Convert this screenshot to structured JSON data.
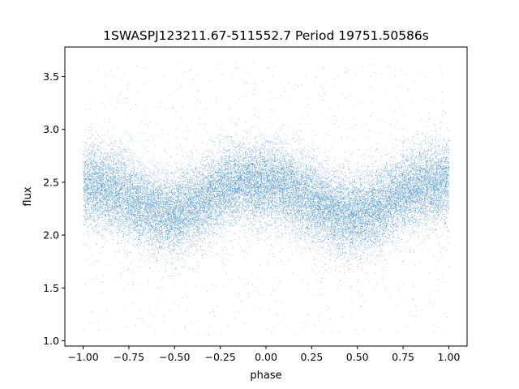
{
  "chart_data": {
    "type": "scatter",
    "title": "1SWASPJ123211.67-511552.7 Period 19751.50586s",
    "xlabel": "phase",
    "ylabel": "flux",
    "xlim": [
      -1.1,
      1.1
    ],
    "ylim": [
      0.95,
      3.78
    ],
    "x_ticks": [
      -1.0,
      -0.75,
      -0.5,
      -0.25,
      0.0,
      0.25,
      0.5,
      0.75,
      1.0
    ],
    "x_tick_labels": [
      "−1.00",
      "−0.75",
      "−0.50",
      "−0.25",
      "0.00",
      "0.25",
      "0.50",
      "0.75",
      "1.00"
    ],
    "y_ticks": [
      1.0,
      1.5,
      2.0,
      2.5,
      3.0,
      3.5
    ],
    "y_tick_labels": [
      "1.0",
      "1.5",
      "2.0",
      "2.5",
      "3.0",
      "3.5"
    ],
    "grid": false,
    "marker_color": "#1f77b4",
    "series": [
      {
        "phase_range": [
          -1.0,
          1.0
        ],
        "profile_phase": [
          -1.0,
          -0.9,
          -0.8,
          -0.7,
          -0.6,
          -0.5,
          -0.4,
          -0.3,
          -0.2,
          -0.1,
          0.0,
          0.1,
          0.2,
          0.3,
          0.4,
          0.5,
          0.6,
          0.7,
          0.8,
          0.9,
          1.0
        ],
        "profile_flux": [
          2.48,
          2.46,
          2.4,
          2.3,
          2.22,
          2.2,
          2.26,
          2.38,
          2.47,
          2.5,
          2.48,
          2.45,
          2.38,
          2.28,
          2.2,
          2.18,
          2.24,
          2.35,
          2.45,
          2.49,
          2.5
        ],
        "scatter_sigma": 0.17,
        "outlier_flux_range": [
          1.05,
          3.65
        ],
        "point_count": 30000
      }
    ]
  }
}
